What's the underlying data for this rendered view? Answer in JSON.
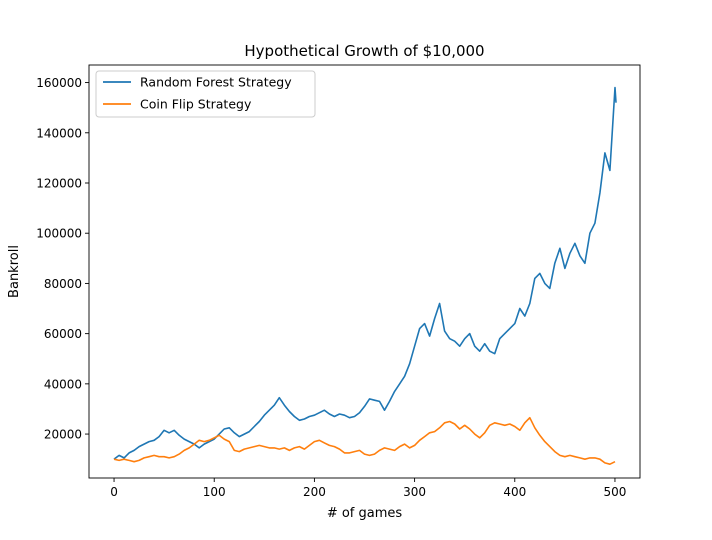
{
  "chart_data": {
    "type": "line",
    "title": "Hypothetical Growth of $10,000",
    "xlabel": "# of games",
    "ylabel": "Bankroll",
    "xlim": [
      -25,
      525
    ],
    "ylim": [
      2500,
      167000
    ],
    "xticks": [
      0,
      100,
      200,
      300,
      400,
      500
    ],
    "yticks": [
      20000,
      40000,
      60000,
      80000,
      100000,
      120000,
      140000,
      160000
    ],
    "grid": false,
    "legend_position": "top-left",
    "series": [
      {
        "name": "Random Forest Strategy",
        "color": "#1f77b4",
        "points": [
          [
            0,
            10000
          ],
          [
            5,
            11500
          ],
          [
            10,
            10500
          ],
          [
            15,
            12500
          ],
          [
            20,
            13500
          ],
          [
            25,
            15000
          ],
          [
            30,
            16000
          ],
          [
            35,
            17000
          ],
          [
            40,
            17500
          ],
          [
            45,
            19000
          ],
          [
            50,
            21500
          ],
          [
            55,
            20500
          ],
          [
            60,
            21500
          ],
          [
            65,
            19500
          ],
          [
            70,
            18000
          ],
          [
            75,
            17000
          ],
          [
            80,
            16000
          ],
          [
            85,
            14500
          ],
          [
            90,
            16000
          ],
          [
            95,
            17000
          ],
          [
            100,
            18000
          ],
          [
            105,
            20000
          ],
          [
            110,
            22000
          ],
          [
            115,
            22500
          ],
          [
            120,
            20500
          ],
          [
            125,
            19000
          ],
          [
            130,
            20000
          ],
          [
            135,
            21000
          ],
          [
            140,
            23000
          ],
          [
            145,
            25000
          ],
          [
            150,
            27500
          ],
          [
            155,
            29500
          ],
          [
            160,
            31500
          ],
          [
            165,
            34500
          ],
          [
            170,
            31500
          ],
          [
            175,
            29000
          ],
          [
            180,
            27000
          ],
          [
            185,
            25500
          ],
          [
            190,
            26000
          ],
          [
            195,
            27000
          ],
          [
            200,
            27500
          ],
          [
            205,
            28500
          ],
          [
            210,
            29500
          ],
          [
            215,
            28000
          ],
          [
            220,
            27000
          ],
          [
            225,
            28000
          ],
          [
            230,
            27500
          ],
          [
            235,
            26500
          ],
          [
            240,
            27000
          ],
          [
            245,
            28500
          ],
          [
            250,
            31000
          ],
          [
            255,
            34000
          ],
          [
            260,
            33500
          ],
          [
            265,
            33000
          ],
          [
            270,
            29500
          ],
          [
            275,
            33000
          ],
          [
            280,
            37000
          ],
          [
            285,
            40000
          ],
          [
            290,
            43000
          ],
          [
            295,
            48000
          ],
          [
            300,
            55000
          ],
          [
            305,
            62000
          ],
          [
            310,
            64000
          ],
          [
            315,
            59000
          ],
          [
            320,
            66000
          ],
          [
            325,
            72000
          ],
          [
            330,
            61000
          ],
          [
            335,
            58000
          ],
          [
            340,
            57000
          ],
          [
            345,
            55000
          ],
          [
            350,
            58000
          ],
          [
            355,
            60000
          ],
          [
            360,
            55000
          ],
          [
            365,
            53000
          ],
          [
            370,
            56000
          ],
          [
            375,
            53000
          ],
          [
            380,
            52000
          ],
          [
            385,
            58000
          ],
          [
            390,
            60000
          ],
          [
            395,
            62000
          ],
          [
            400,
            64000
          ],
          [
            405,
            70000
          ],
          [
            410,
            67000
          ],
          [
            415,
            72000
          ],
          [
            420,
            82000
          ],
          [
            425,
            84000
          ],
          [
            430,
            80000
          ],
          [
            435,
            78000
          ],
          [
            440,
            88000
          ],
          [
            445,
            94000
          ],
          [
            450,
            86000
          ],
          [
            455,
            92000
          ],
          [
            460,
            96000
          ],
          [
            465,
            91000
          ],
          [
            470,
            88000
          ],
          [
            475,
            100000
          ],
          [
            480,
            104000
          ],
          [
            485,
            116000
          ],
          [
            490,
            132000
          ],
          [
            495,
            125000
          ],
          [
            500,
            158000
          ],
          [
            501,
            152000
          ]
        ]
      },
      {
        "name": "Coin Flip Strategy",
        "color": "#ff7f0e",
        "points": [
          [
            0,
            10000
          ],
          [
            5,
            9500
          ],
          [
            10,
            10000
          ],
          [
            15,
            9500
          ],
          [
            20,
            9000
          ],
          [
            25,
            9500
          ],
          [
            30,
            10500
          ],
          [
            35,
            11000
          ],
          [
            40,
            11500
          ],
          [
            45,
            11000
          ],
          [
            50,
            11000
          ],
          [
            55,
            10500
          ],
          [
            60,
            11000
          ],
          [
            65,
            12000
          ],
          [
            70,
            13500
          ],
          [
            75,
            14500
          ],
          [
            80,
            16000
          ],
          [
            85,
            17500
          ],
          [
            90,
            17000
          ],
          [
            95,
            17500
          ],
          [
            100,
            18500
          ],
          [
            105,
            19500
          ],
          [
            110,
            18000
          ],
          [
            115,
            17000
          ],
          [
            120,
            13500
          ],
          [
            125,
            13000
          ],
          [
            130,
            14000
          ],
          [
            135,
            14500
          ],
          [
            140,
            15000
          ],
          [
            145,
            15500
          ],
          [
            150,
            15000
          ],
          [
            155,
            14500
          ],
          [
            160,
            14500
          ],
          [
            165,
            14000
          ],
          [
            170,
            14500
          ],
          [
            175,
            13500
          ],
          [
            180,
            14500
          ],
          [
            185,
            15000
          ],
          [
            190,
            14000
          ],
          [
            195,
            15500
          ],
          [
            200,
            17000
          ],
          [
            205,
            17500
          ],
          [
            210,
            16500
          ],
          [
            215,
            15500
          ],
          [
            220,
            15000
          ],
          [
            225,
            14000
          ],
          [
            230,
            12500
          ],
          [
            235,
            12500
          ],
          [
            240,
            13000
          ],
          [
            245,
            13500
          ],
          [
            250,
            12000
          ],
          [
            255,
            11500
          ],
          [
            260,
            12000
          ],
          [
            265,
            13500
          ],
          [
            270,
            14500
          ],
          [
            275,
            14000
          ],
          [
            280,
            13500
          ],
          [
            285,
            15000
          ],
          [
            290,
            16000
          ],
          [
            295,
            14500
          ],
          [
            300,
            15500
          ],
          [
            305,
            17500
          ],
          [
            310,
            19000
          ],
          [
            315,
            20500
          ],
          [
            320,
            21000
          ],
          [
            325,
            22500
          ],
          [
            330,
            24500
          ],
          [
            335,
            25000
          ],
          [
            340,
            24000
          ],
          [
            345,
            22000
          ],
          [
            350,
            23500
          ],
          [
            355,
            22000
          ],
          [
            360,
            20000
          ],
          [
            365,
            18500
          ],
          [
            370,
            20500
          ],
          [
            375,
            23500
          ],
          [
            380,
            24500
          ],
          [
            385,
            24000
          ],
          [
            390,
            23500
          ],
          [
            395,
            24000
          ],
          [
            400,
            23000
          ],
          [
            405,
            21500
          ],
          [
            410,
            24500
          ],
          [
            415,
            26500
          ],
          [
            420,
            22500
          ],
          [
            425,
            19500
          ],
          [
            430,
            17000
          ],
          [
            435,
            15000
          ],
          [
            440,
            13000
          ],
          [
            445,
            11500
          ],
          [
            450,
            11000
          ],
          [
            455,
            11500
          ],
          [
            460,
            11000
          ],
          [
            465,
            10500
          ],
          [
            470,
            10000
          ],
          [
            475,
            10500
          ],
          [
            480,
            10500
          ],
          [
            485,
            10000
          ],
          [
            490,
            8500
          ],
          [
            495,
            8000
          ],
          [
            500,
            9000
          ]
        ]
      }
    ]
  }
}
